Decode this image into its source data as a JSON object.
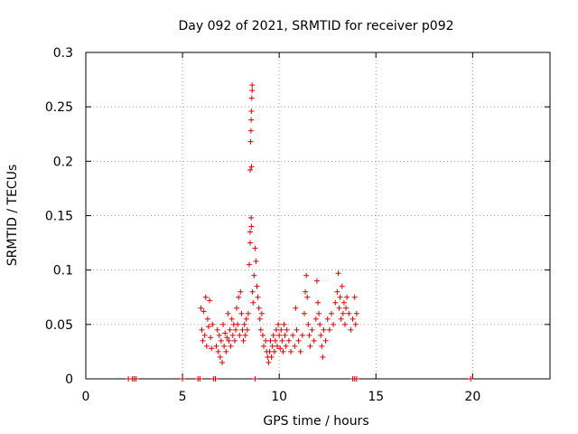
{
  "chart_data": {
    "type": "scatter",
    "title": "Day 092 of 2021, SRMTID for receiver p092",
    "xlabel": "GPS time / hours",
    "ylabel": "SRMTID / TECUs",
    "xlim": [
      0,
      24
    ],
    "ylim": [
      0,
      0.3
    ],
    "xticks": [
      0,
      5,
      10,
      15,
      20
    ],
    "xtick_labels": [
      "0",
      "5",
      "10",
      "15",
      "20"
    ],
    "yticks": [
      0,
      0.05,
      0.1,
      0.15,
      0.2,
      0.25,
      0.3
    ],
    "ytick_labels": [
      "0",
      "0.05",
      "0.1",
      "0.15",
      "0.2",
      "0.25",
      "0.3"
    ],
    "grid": true,
    "marker": "+",
    "color": "#e00000",
    "series": [
      {
        "name": "SRMTID",
        "points": [
          [
            2.2,
            0
          ],
          [
            2.4,
            0
          ],
          [
            2.5,
            0
          ],
          [
            2.6,
            0
          ],
          [
            5.0,
            0
          ],
          [
            5.8,
            0
          ],
          [
            5.9,
            0
          ],
          [
            6.6,
            0
          ],
          [
            6.7,
            0
          ],
          [
            8.75,
            0
          ],
          [
            13.8,
            0
          ],
          [
            13.9,
            0
          ],
          [
            14.0,
            0
          ],
          [
            19.9,
            0
          ],
          [
            5.95,
            0.065
          ],
          [
            6.0,
            0.045
          ],
          [
            6.05,
            0.035
          ],
          [
            6.1,
            0.062
          ],
          [
            6.15,
            0.04
          ],
          [
            6.2,
            0.075
          ],
          [
            6.25,
            0.03
          ],
          [
            6.3,
            0.055
          ],
          [
            6.35,
            0.048
          ],
          [
            6.4,
            0.072
          ],
          [
            6.45,
            0.038
          ],
          [
            6.5,
            0.028
          ],
          [
            6.55,
            0.05
          ],
          [
            6.75,
            0.03
          ],
          [
            6.8,
            0.045
          ],
          [
            6.85,
            0.025
          ],
          [
            6.9,
            0.04
          ],
          [
            6.95,
            0.02
          ],
          [
            7.0,
            0.035
          ],
          [
            7.05,
            0.015
          ],
          [
            7.1,
            0.05
          ],
          [
            7.15,
            0.03
          ],
          [
            7.2,
            0.042
          ],
          [
            7.25,
            0.025
          ],
          [
            7.3,
            0.038
          ],
          [
            7.35,
            0.06
          ],
          [
            7.4,
            0.035
          ],
          [
            7.45,
            0.045
          ],
          [
            7.5,
            0.03
          ],
          [
            7.55,
            0.055
          ],
          [
            7.6,
            0.04
          ],
          [
            7.65,
            0.05
          ],
          [
            7.7,
            0.035
          ],
          [
            7.75,
            0.045
          ],
          [
            7.8,
            0.065
          ],
          [
            7.85,
            0.05
          ],
          [
            7.9,
            0.075
          ],
          [
            7.95,
            0.04
          ],
          [
            8.0,
            0.08
          ],
          [
            8.05,
            0.06
          ],
          [
            8.1,
            0.045
          ],
          [
            8.15,
            0.035
          ],
          [
            8.2,
            0.05
          ],
          [
            8.25,
            0.04
          ],
          [
            8.3,
            0.055
          ],
          [
            8.35,
            0.045
          ],
          [
            8.4,
            0.06
          ],
          [
            8.45,
            0.105
          ],
          [
            8.5,
            0.125
          ],
          [
            8.5,
            0.135
          ],
          [
            8.5,
            0.192
          ],
          [
            8.52,
            0.218
          ],
          [
            8.54,
            0.228
          ],
          [
            8.55,
            0.238
          ],
          [
            8.56,
            0.246
          ],
          [
            8.58,
            0.258
          ],
          [
            8.6,
            0.265
          ],
          [
            8.6,
            0.27
          ],
          [
            8.57,
            0.195
          ],
          [
            8.55,
            0.148
          ],
          [
            8.56,
            0.14
          ],
          [
            8.62,
            0.08
          ],
          [
            8.65,
            0.07
          ],
          [
            8.7,
            0.095
          ],
          [
            8.75,
            0.12
          ],
          [
            8.8,
            0.108
          ],
          [
            8.85,
            0.085
          ],
          [
            8.9,
            0.075
          ],
          [
            8.95,
            0.065
          ],
          [
            9.0,
            0.055
          ],
          [
            9.05,
            0.045
          ],
          [
            9.1,
            0.06
          ],
          [
            9.15,
            0.04
          ],
          [
            9.2,
            0.03
          ],
          [
            9.3,
            0.035
          ],
          [
            9.35,
            0.025
          ],
          [
            9.4,
            0.02
          ],
          [
            9.45,
            0.015
          ],
          [
            9.5,
            0.025
          ],
          [
            9.55,
            0.035
          ],
          [
            9.6,
            0.02
          ],
          [
            9.65,
            0.03
          ],
          [
            9.7,
            0.04
          ],
          [
            9.75,
            0.025
          ],
          [
            9.8,
            0.035
          ],
          [
            9.85,
            0.045
          ],
          [
            9.9,
            0.03
          ],
          [
            9.95,
            0.05
          ],
          [
            10.0,
            0.04
          ],
          [
            10.05,
            0.028
          ],
          [
            10.1,
            0.045
          ],
          [
            10.15,
            0.035
          ],
          [
            10.2,
            0.025
          ],
          [
            10.25,
            0.05
          ],
          [
            10.3,
            0.04
          ],
          [
            10.35,
            0.03
          ],
          [
            10.4,
            0.045
          ],
          [
            10.5,
            0.035
          ],
          [
            10.6,
            0.025
          ],
          [
            10.7,
            0.04
          ],
          [
            10.8,
            0.03
          ],
          [
            10.85,
            0.065
          ],
          [
            10.9,
            0.045
          ],
          [
            11.0,
            0.035
          ],
          [
            11.1,
            0.025
          ],
          [
            11.2,
            0.04
          ],
          [
            11.3,
            0.06
          ],
          [
            11.35,
            0.08
          ],
          [
            11.4,
            0.095
          ],
          [
            11.45,
            0.075
          ],
          [
            11.5,
            0.05
          ],
          [
            11.55,
            0.04
          ],
          [
            11.6,
            0.03
          ],
          [
            11.7,
            0.045
          ],
          [
            11.8,
            0.035
          ],
          [
            11.9,
            0.055
          ],
          [
            11.95,
            0.09
          ],
          [
            12.0,
            0.07
          ],
          [
            12.05,
            0.06
          ],
          [
            12.1,
            0.05
          ],
          [
            12.15,
            0.04
          ],
          [
            12.2,
            0.03
          ],
          [
            12.25,
            0.02
          ],
          [
            12.3,
            0.045
          ],
          [
            12.4,
            0.035
          ],
          [
            12.5,
            0.055
          ],
          [
            12.6,
            0.045
          ],
          [
            12.7,
            0.06
          ],
          [
            12.8,
            0.05
          ],
          [
            12.9,
            0.07
          ],
          [
            13.0,
            0.08
          ],
          [
            13.05,
            0.097
          ],
          [
            13.1,
            0.065
          ],
          [
            13.15,
            0.075
          ],
          [
            13.2,
            0.055
          ],
          [
            13.25,
            0.085
          ],
          [
            13.3,
            0.06
          ],
          [
            13.35,
            0.07
          ],
          [
            13.4,
            0.05
          ],
          [
            13.45,
            0.065
          ],
          [
            13.5,
            0.075
          ],
          [
            13.6,
            0.06
          ],
          [
            13.7,
            0.045
          ],
          [
            13.8,
            0.055
          ],
          [
            13.9,
            0.075
          ],
          [
            13.95,
            0.05
          ],
          [
            14.0,
            0.06
          ]
        ]
      }
    ]
  }
}
